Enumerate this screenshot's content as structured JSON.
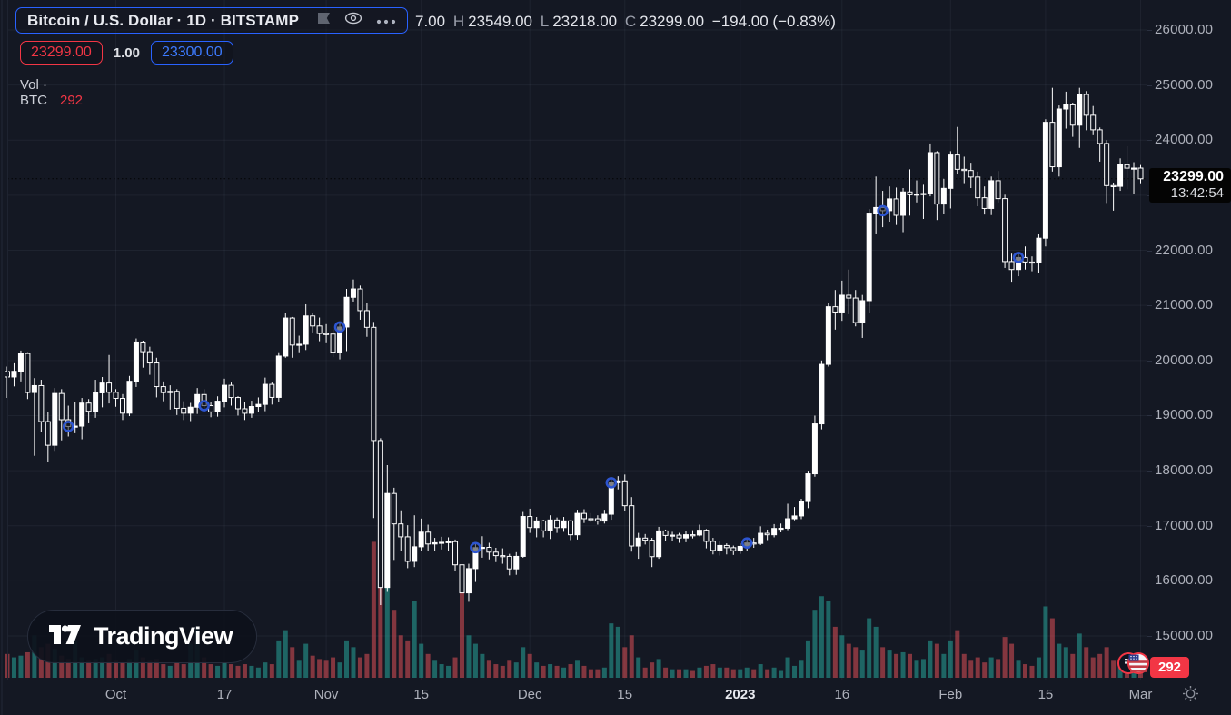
{
  "header": {
    "symbol_title": "Bitcoin / U.S. Dollar · 1D · BITSTAMP",
    "ohlc": {
      "open_fragment": "7.00",
      "high_label": "H",
      "high": "23549.00",
      "low_label": "L",
      "low": "23218.00",
      "close_label": "C",
      "close": "23299.00",
      "change": "−194.00 (−0.83%)"
    },
    "sell_price": "23299.00",
    "spread": "1.00",
    "buy_price": "23300.00",
    "volume_legend": {
      "label": "Vol · BTC",
      "value": "292"
    }
  },
  "price_axis": {
    "labels": [
      "26000.00",
      "25000.00",
      "24000.00",
      "23000.00",
      "22000.00",
      "21000.00",
      "20000.00",
      "19000.00",
      "18000.00",
      "17000.00",
      "16000.00",
      "15000.00"
    ],
    "price_label": {
      "price": "23299.00",
      "countdown": "13:42:54"
    },
    "volume_badge": "292"
  },
  "time_axis": {
    "ticks": [
      {
        "i": 16,
        "label": "Oct",
        "major": false
      },
      {
        "i": 32,
        "label": "17",
        "major": false
      },
      {
        "i": 47,
        "label": "Nov",
        "major": false
      },
      {
        "i": 61,
        "label": "15",
        "major": false
      },
      {
        "i": 77,
        "label": "Dec",
        "major": false
      },
      {
        "i": 91,
        "label": "15",
        "major": false
      },
      {
        "i": 108,
        "label": "2023",
        "major": true
      },
      {
        "i": 123,
        "label": "16",
        "major": false
      },
      {
        "i": 139,
        "label": "Feb",
        "major": false
      },
      {
        "i": 153,
        "label": "15",
        "major": false
      },
      {
        "i": 167,
        "label": "Mar",
        "major": false
      }
    ]
  },
  "watermark": {
    "text": "TradingView"
  },
  "colors": {
    "background": "#141823",
    "accent_blue": "#2962ff",
    "red": "#f23645",
    "candle_up": "#ffffff",
    "candle_down_fill": "#141823",
    "vol_up": "rgba(38,166,154,0.55)",
    "vol_down": "rgba(242,84,92,0.5)",
    "marker_blue": "#2d55d0",
    "label_bg": "#040404"
  },
  "chart_data": {
    "type": "candlestick",
    "title": "Bitcoin / U.S. Dollar",
    "exchange": "BITSTAMP",
    "interval": "1D",
    "ylim": [
      15000,
      26000
    ],
    "grid": true,
    "price_line": 23299,
    "last": {
      "high": 23549,
      "low": 23218,
      "close": 23299,
      "change": -194,
      "change_pct": -0.83
    },
    "volume_btc": 292,
    "first_open": 19800,
    "markers_every_20_from": 9,
    "markers": [
      9,
      29,
      49,
      69,
      89,
      109,
      129,
      149
    ],
    "candles": [
      [
        19701,
        19890,
        19320,
        14
      ],
      [
        19804,
        19950,
        19530,
        12
      ],
      [
        20127,
        20180,
        19620,
        13
      ],
      [
        19419,
        20150,
        19300,
        15
      ],
      [
        19544,
        19680,
        18270,
        25
      ],
      [
        18891,
        19650,
        18700,
        18
      ],
      [
        18461,
        19060,
        18150,
        20
      ],
      [
        19401,
        19500,
        18360,
        17
      ],
      [
        18925,
        19480,
        18550,
        13
      ],
      [
        18802,
        19180,
        18620,
        11
      ],
      [
        18809,
        19250,
        18680,
        22
      ],
      [
        19227,
        19320,
        18570,
        12
      ],
      [
        19078,
        19300,
        18860,
        10
      ],
      [
        19412,
        19650,
        18960,
        11
      ],
      [
        19591,
        19700,
        19150,
        12
      ],
      [
        19423,
        20100,
        19220,
        14
      ],
      [
        19312,
        19480,
        19160,
        10
      ],
      [
        19044,
        19390,
        18920,
        9
      ],
      [
        19623,
        19720,
        18990,
        11
      ],
      [
        20336,
        20400,
        19520,
        16
      ],
      [
        20160,
        20360,
        19870,
        12
      ],
      [
        19955,
        20250,
        19740,
        10
      ],
      [
        19526,
        20050,
        19330,
        11
      ],
      [
        19417,
        19620,
        19260,
        8
      ],
      [
        19440,
        19550,
        19110,
        7
      ],
      [
        19132,
        19480,
        19010,
        9
      ],
      [
        19043,
        19260,
        18920,
        8
      ],
      [
        19152,
        19230,
        18900,
        20
      ],
      [
        19382,
        19500,
        19030,
        30
      ],
      [
        19180,
        19480,
        19070,
        12
      ],
      [
        19067,
        19250,
        18970,
        8
      ],
      [
        19262,
        19350,
        18980,
        7
      ],
      [
        19550,
        19670,
        19150,
        9
      ],
      [
        19328,
        19600,
        19180,
        8
      ],
      [
        19123,
        19350,
        19000,
        7
      ],
      [
        19042,
        19250,
        18920,
        8
      ],
      [
        19164,
        19270,
        18960,
        7
      ],
      [
        19203,
        19330,
        19060,
        6
      ],
      [
        19567,
        19690,
        19080,
        9
      ],
      [
        19330,
        19600,
        19200,
        8
      ],
      [
        20080,
        20150,
        19240,
        22
      ],
      [
        20771,
        20860,
        20050,
        28
      ],
      [
        20280,
        20790,
        20050,
        18
      ],
      [
        20295,
        20450,
        20150,
        10
      ],
      [
        20809,
        21020,
        20190,
        20
      ],
      [
        20627,
        20870,
        20510,
        13
      ],
      [
        20490,
        20780,
        20350,
        11
      ],
      [
        20480,
        20660,
        20330,
        10
      ],
      [
        20151,
        20570,
        20060,
        12
      ],
      [
        20608,
        20690,
        20020,
        9
      ],
      [
        21147,
        21300,
        20170,
        22
      ],
      [
        21299,
        21470,
        21070,
        18
      ],
      [
        20905,
        21360,
        20740,
        12
      ],
      [
        20602,
        21050,
        20430,
        14
      ],
      [
        18547,
        20700,
        17140,
        80
      ],
      [
        15880,
        18590,
        15560,
        100
      ],
      [
        17586,
        18100,
        15800,
        75
      ],
      [
        17034,
        17690,
        16380,
        40
      ],
      [
        16799,
        17280,
        16550,
        25
      ],
      [
        16353,
        17010,
        16230,
        22
      ],
      [
        16618,
        17190,
        16250,
        45
      ],
      [
        16884,
        17130,
        16540,
        20
      ],
      [
        16669,
        17020,
        16550,
        14
      ],
      [
        16692,
        16780,
        16540,
        10
      ],
      [
        16700,
        16800,
        16570,
        8
      ],
      [
        16712,
        16790,
        16540,
        7
      ],
      [
        16291,
        16750,
        16180,
        12
      ],
      [
        15782,
        16300,
        15480,
        55
      ],
      [
        16222,
        16310,
        15620,
        25
      ],
      [
        16603,
        16700,
        15980,
        20
      ],
      [
        16608,
        16810,
        16420,
        14
      ],
      [
        16521,
        16690,
        16390,
        10
      ],
      [
        16458,
        16600,
        16340,
        8
      ],
      [
        16444,
        16590,
        16310,
        7
      ],
      [
        16217,
        16490,
        16100,
        10
      ],
      [
        16444,
        16520,
        16110,
        9
      ],
      [
        17168,
        17250,
        16420,
        18
      ],
      [
        16967,
        17310,
        16870,
        14
      ],
      [
        17088,
        17160,
        16790,
        9
      ],
      [
        16908,
        17110,
        16790,
        7
      ],
      [
        17105,
        17190,
        16760,
        8
      ],
      [
        16966,
        17150,
        16870,
        7
      ],
      [
        17089,
        17160,
        16890,
        6
      ],
      [
        16836,
        17100,
        16740,
        8
      ],
      [
        17224,
        17290,
        16750,
        10
      ],
      [
        17128,
        17300,
        17050,
        7
      ],
      [
        17127,
        17230,
        17060,
        5
      ],
      [
        17085,
        17190,
        17020,
        5
      ],
      [
        17209,
        17290,
        17040,
        6
      ],
      [
        17781,
        17850,
        17110,
        32
      ],
      [
        17815,
        17900,
        17660,
        30
      ],
      [
        17364,
        17930,
        17270,
        18
      ],
      [
        16632,
        17520,
        16530,
        25
      ],
      [
        16776,
        16870,
        16400,
        12
      ],
      [
        16738,
        16850,
        16660,
        6
      ],
      [
        16439,
        16780,
        16250,
        9
      ],
      [
        16906,
        16980,
        16400,
        11
      ],
      [
        16824,
        16930,
        16720,
        6
      ],
      [
        16830,
        16890,
        16720,
        5
      ],
      [
        16778,
        16870,
        16690,
        5
      ],
      [
        16837,
        16910,
        16700,
        5
      ],
      [
        16832,
        16920,
        16770,
        4
      ],
      [
        16919,
        17020,
        16810,
        6
      ],
      [
        16717,
        16940,
        16590,
        7
      ],
      [
        16552,
        16780,
        16480,
        8
      ],
      [
        16642,
        16720,
        16460,
        6
      ],
      [
        16602,
        16680,
        16480,
        6
      ],
      [
        16547,
        16640,
        16470,
        5
      ],
      [
        16625,
        16680,
        16490,
        5
      ],
      [
        16688,
        16770,
        16550,
        6
      ],
      [
        16679,
        16780,
        16600,
        5
      ],
      [
        16863,
        16990,
        16650,
        8
      ],
      [
        16836,
        16930,
        16740,
        5
      ],
      [
        16951,
        17030,
        16790,
        6
      ],
      [
        16955,
        17040,
        16880,
        4
      ],
      [
        17127,
        17400,
        16920,
        12
      ],
      [
        17178,
        17340,
        17100,
        7
      ],
      [
        17440,
        17490,
        17120,
        10
      ],
      [
        17943,
        18000,
        17320,
        22
      ],
      [
        18850,
        19000,
        17890,
        40
      ],
      [
        19930,
        20000,
        18750,
        48
      ],
      [
        20976,
        21050,
        19890,
        45
      ],
      [
        20880,
        21280,
        20560,
        30
      ],
      [
        21185,
        21450,
        20720,
        25
      ],
      [
        21134,
        21650,
        20840,
        20
      ],
      [
        20688,
        21280,
        20620,
        18
      ],
      [
        21086,
        21190,
        20410,
        16
      ],
      [
        22676,
        22750,
        20870,
        35
      ],
      [
        22777,
        23340,
        22290,
        30
      ],
      [
        22720,
        23080,
        22420,
        18
      ],
      [
        22934,
        23160,
        22520,
        16
      ],
      [
        22636,
        23140,
        22460,
        14
      ],
      [
        23060,
        23130,
        22330,
        15
      ],
      [
        23009,
        23470,
        22630,
        14
      ],
      [
        23021,
        23270,
        22870,
        10
      ],
      [
        23031,
        23190,
        22570,
        11
      ],
      [
        23774,
        23940,
        22980,
        22
      ],
      [
        22840,
        23800,
        22550,
        20
      ],
      [
        23125,
        23300,
        22660,
        14
      ],
      [
        23731,
        23800,
        22760,
        22
      ],
      [
        23471,
        24240,
        23390,
        28
      ],
      [
        23449,
        23700,
        23220,
        14
      ],
      [
        23331,
        23590,
        23130,
        10
      ],
      [
        22955,
        23430,
        22800,
        12
      ],
      [
        22760,
        23160,
        22650,
        9
      ],
      [
        23264,
        23340,
        22640,
        12
      ],
      [
        22939,
        23440,
        22870,
        11
      ],
      [
        21796,
        23010,
        21680,
        24
      ],
      [
        21651,
        21940,
        21430,
        20
      ],
      [
        21870,
        21940,
        21530,
        10
      ],
      [
        21788,
        22070,
        21650,
        8
      ],
      [
        21783,
        21890,
        21620,
        7
      ],
      [
        22220,
        22290,
        21580,
        12
      ],
      [
        24324,
        24380,
        22070,
        42
      ],
      [
        23517,
        24950,
        23430,
        35
      ],
      [
        24565,
        24630,
        23340,
        20
      ],
      [
        24641,
        24880,
        24210,
        18
      ],
      [
        24272,
        24680,
        24060,
        14
      ],
      [
        24829,
        24950,
        23860,
        26
      ],
      [
        24452,
        24890,
        24180,
        18
      ],
      [
        24188,
        24620,
        24090,
        12
      ],
      [
        23940,
        24230,
        23610,
        14
      ],
      [
        23175,
        24000,
        22860,
        18
      ],
      [
        23162,
        23230,
        22720,
        10
      ],
      [
        23554,
        23670,
        23080,
        11
      ],
      [
        23492,
        23890,
        23110,
        9
      ],
      [
        23493,
        23600,
        23020,
        10
      ],
      [
        23299,
        23549,
        23218,
        8
      ]
    ]
  }
}
